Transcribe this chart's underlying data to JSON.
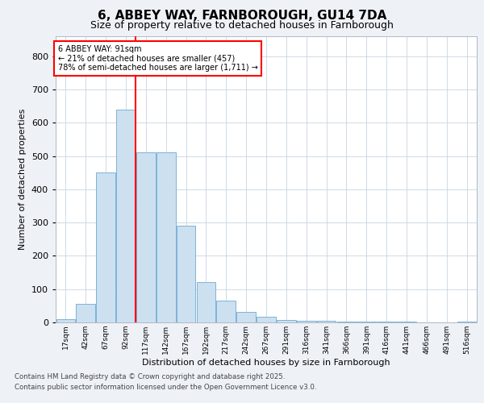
{
  "title_line1": "6, ABBEY WAY, FARNBOROUGH, GU14 7DA",
  "title_line2": "Size of property relative to detached houses in Farnborough",
  "xlabel": "Distribution of detached houses by size in Farnborough",
  "ylabel": "Number of detached properties",
  "categories": [
    "17sqm",
    "42sqm",
    "67sqm",
    "92sqm",
    "117sqm",
    "142sqm",
    "167sqm",
    "192sqm",
    "217sqm",
    "242sqm",
    "267sqm",
    "291sqm",
    "316sqm",
    "341sqm",
    "366sqm",
    "391sqm",
    "416sqm",
    "441sqm",
    "466sqm",
    "491sqm",
    "516sqm"
  ],
  "values": [
    10,
    55,
    450,
    640,
    510,
    510,
    290,
    120,
    65,
    32,
    18,
    8,
    5,
    5,
    3,
    3,
    2,
    2,
    1,
    0,
    3
  ],
  "bar_color": "#cce0f0",
  "bar_edge_color": "#6aaad4",
  "redline_index": 3,
  "annotation_title": "6 ABBEY WAY: 91sqm",
  "annotation_line2": "← 21% of detached houses are smaller (457)",
  "annotation_line3": "78% of semi-detached houses are larger (1,711) →",
  "ylim": [
    0,
    860
  ],
  "yticks": [
    0,
    100,
    200,
    300,
    400,
    500,
    600,
    700,
    800
  ],
  "footer_line1": "Contains HM Land Registry data © Crown copyright and database right 2025.",
  "footer_line2": "Contains public sector information licensed under the Open Government Licence v3.0.",
  "bg_color": "#eef2f7",
  "plot_bg_color": "#ffffff",
  "grid_color": "#c8d4e0",
  "title_fontsize": 11,
  "subtitle_fontsize": 9,
  "ylabel_fontsize": 8,
  "xlabel_fontsize": 8,
  "ytick_fontsize": 8,
  "xtick_fontsize": 6.5,
  "footer_fontsize": 6.2
}
